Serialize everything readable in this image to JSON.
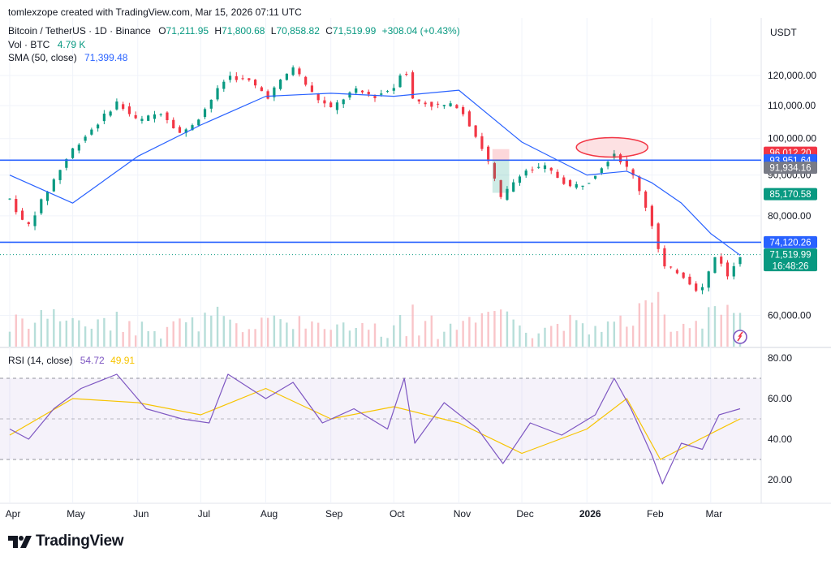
{
  "header": {
    "created_by": "tomlexzope created with TradingView.com, Mar 15, 2026 07:11 UTC",
    "symbol": "Bitcoin / TetherUS · 1D · Binance",
    "ohlc": {
      "o_label": "O",
      "o": "71,211.95",
      "h_label": "H",
      "h": "71,800.68",
      "l_label": "L",
      "l": "70,858.82",
      "c_label": "C",
      "c": "71,519.99",
      "change": "+308.04 (+0.43%)"
    },
    "vol_label": "Vol · BTC",
    "vol_value": "4.79 K",
    "sma_label": "SMA (50, close)",
    "sma_value": "71,399.48",
    "currency": "USDT"
  },
  "rsi_header": {
    "label": "RSI (14, close)",
    "rsi_value": "54.72",
    "rsi_ma_value": "49.91"
  },
  "price_axis": {
    "ticks": [
      {
        "value": 120000,
        "label": "120,000.00"
      },
      {
        "value": 110000,
        "label": "110,000.00"
      },
      {
        "value": 100000,
        "label": "100,000.00"
      },
      {
        "value": 90000,
        "label": "90,000.00"
      },
      {
        "value": 80000,
        "label": "80,000.00"
      },
      {
        "value": 60000,
        "label": "60,000.00"
      }
    ],
    "markers": [
      {
        "value": 96012.2,
        "label": "96,012.20",
        "color": "#f23645"
      },
      {
        "value": 93951.64,
        "label": "93,951.64",
        "color": "#2962ff"
      },
      {
        "value": 91934.16,
        "label": "91,934.16",
        "color": "#787b86"
      },
      {
        "value": 85170.58,
        "label": "85,170.58",
        "color": "#089981"
      },
      {
        "value": 74120.26,
        "label": "74,120.26",
        "color": "#2962ff"
      },
      {
        "value": 71519.99,
        "label": "71,519.99",
        "color": "#089981",
        "countdown": "16:48:26"
      }
    ]
  },
  "rsi_axis": {
    "ticks": [
      {
        "value": 80,
        "label": "80.00"
      },
      {
        "value": 60,
        "label": "60.00"
      },
      {
        "value": 40,
        "label": "40.00"
      },
      {
        "value": 20,
        "label": "20.00"
      }
    ]
  },
  "time_axis": [
    {
      "label": "Apr",
      "day": 0,
      "bold": false
    },
    {
      "label": "May",
      "day": 30,
      "bold": false
    },
    {
      "label": "Jun",
      "day": 61,
      "bold": false
    },
    {
      "label": "Jul",
      "day": 91,
      "bold": false
    },
    {
      "label": "Aug",
      "day": 122,
      "bold": false
    },
    {
      "label": "Sep",
      "day": 153,
      "bold": false
    },
    {
      "label": "Oct",
      "day": 183,
      "bold": false
    },
    {
      "label": "Nov",
      "day": 214,
      "bold": false
    },
    {
      "label": "Dec",
      "day": 244,
      "bold": false
    },
    {
      "label": "2026",
      "day": 275,
      "bold": true
    },
    {
      "label": "Feb",
      "day": 306,
      "bold": false
    },
    {
      "label": "Mar",
      "day": 334,
      "bold": false
    }
  ],
  "logo": {
    "text": "TradingView"
  },
  "chart_data": {
    "type": "line",
    "title": "Bitcoin / TetherUS · 1D · Binance",
    "x_start": "2025-04-01",
    "x_end": "2026-03-15",
    "ylim": [
      55000,
      130000
    ],
    "horizontal_lines": [
      93951.64,
      74120.26
    ],
    "series": [
      {
        "name": "Bitcoin / TetherUS",
        "x": [
          "2025-04-01",
          "2025-04-09",
          "2025-04-20",
          "2025-05-01",
          "2025-05-12",
          "2025-05-22",
          "2025-06-01",
          "2025-06-12",
          "2025-06-22",
          "2025-07-01",
          "2025-07-14",
          "2025-07-24",
          "2025-08-02",
          "2025-08-14",
          "2025-08-24",
          "2025-09-01",
          "2025-09-12",
          "2025-09-22",
          "2025-10-01",
          "2025-10-06",
          "2025-10-10",
          "2025-10-20",
          "2025-11-01",
          "2025-11-14",
          "2025-11-21",
          "2025-12-01",
          "2025-12-12",
          "2025-12-24",
          "2026-01-01",
          "2026-01-14",
          "2026-01-24",
          "2026-02-01",
          "2026-02-06",
          "2026-02-14",
          "2026-02-24",
          "2026-03-04",
          "2026-03-09",
          "2026-03-15"
        ],
        "values": [
          84000,
          77000,
          87000,
          97000,
          104000,
          111000,
          105000,
          108000,
          101000,
          107000,
          120000,
          118000,
          113000,
          123000,
          113000,
          109000,
          115000,
          113000,
          116000,
          124000,
          112000,
          110000,
          110000,
          95000,
          84000,
          91000,
          92000,
          87000,
          88000,
          96000,
          89000,
          78000,
          69000,
          68000,
          64000,
          72000,
          67000,
          71520
        ]
      },
      {
        "name": "SMA (50, close)",
        "x": [
          "2025-04-01",
          "2025-05-01",
          "2025-06-01",
          "2025-07-01",
          "2025-08-01",
          "2025-09-01",
          "2025-10-01",
          "2025-11-01",
          "2025-12-01",
          "2026-01-01",
          "2026-01-20",
          "2026-02-01",
          "2026-02-15",
          "2026-03-01",
          "2026-03-15"
        ],
        "values": [
          90000,
          83000,
          95000,
          104000,
          113000,
          114000,
          113000,
          115000,
          99000,
          90000,
          91000,
          88000,
          83000,
          76000,
          71399
        ]
      },
      {
        "name": "RSI (14, close)",
        "x": [
          "2025-04-01",
          "2025-04-10",
          "2025-04-22",
          "2025-05-05",
          "2025-05-22",
          "2025-06-05",
          "2025-06-22",
          "2025-07-05",
          "2025-07-14",
          "2025-08-01",
          "2025-08-14",
          "2025-08-28",
          "2025-09-12",
          "2025-09-28",
          "2025-10-06",
          "2025-10-11",
          "2025-10-25",
          "2025-11-10",
          "2025-11-22",
          "2025-12-05",
          "2025-12-20",
          "2026-01-05",
          "2026-01-14",
          "2026-01-22",
          "2026-02-01",
          "2026-02-06",
          "2026-02-15",
          "2026-02-25",
          "2026-03-05",
          "2026-03-15"
        ],
        "values": [
          45,
          40,
          55,
          65,
          72,
          55,
          50,
          48,
          72,
          60,
          68,
          48,
          55,
          45,
          70,
          38,
          58,
          45,
          28,
          48,
          42,
          52,
          70,
          55,
          32,
          18,
          38,
          35,
          52,
          55
        ]
      },
      {
        "name": "RSI-based MA",
        "x": [
          "2025-04-01",
          "2025-05-01",
          "2025-06-01",
          "2025-07-01",
          "2025-08-01",
          "2025-09-01",
          "2025-10-01",
          "2025-11-01",
          "2025-12-01",
          "2026-01-01",
          "2026-01-20",
          "2026-02-05",
          "2026-02-20",
          "2026-03-15"
        ],
        "values": [
          42,
          60,
          58,
          52,
          65,
          50,
          56,
          48,
          33,
          45,
          60,
          30,
          38,
          50
        ]
      }
    ]
  }
}
